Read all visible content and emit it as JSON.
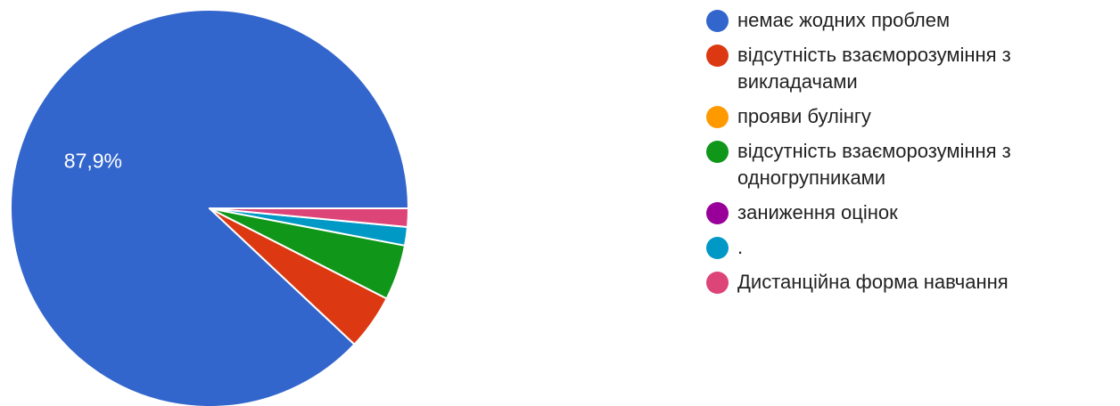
{
  "chart_data": {
    "type": "pie",
    "slices": [
      {
        "label": "немає жодних проблем",
        "value": 87.9,
        "color": "#3366cc",
        "display_label": "87,9%"
      },
      {
        "label": "відсутність взаєморозуміння з викладачами",
        "value": 4.5,
        "color": "#dc3912",
        "display_label": ""
      },
      {
        "label": "прояви булінгу",
        "value": 0,
        "color": "#ff9900",
        "display_label": ""
      },
      {
        "label": "відсутність взаєморозуміння з одногрупниками",
        "value": 4.5,
        "color": "#109618",
        "display_label": ""
      },
      {
        "label": "заниження оцінок",
        "value": 0,
        "color": "#990099",
        "display_label": ""
      },
      {
        "label": ".",
        "value": 1.5,
        "color": "#0099c6",
        "display_label": ""
      },
      {
        "label": "Дистанційна форма навчання",
        "value": 1.5,
        "color": "#dd4477",
        "display_label": ""
      }
    ],
    "legend_position": "right"
  }
}
